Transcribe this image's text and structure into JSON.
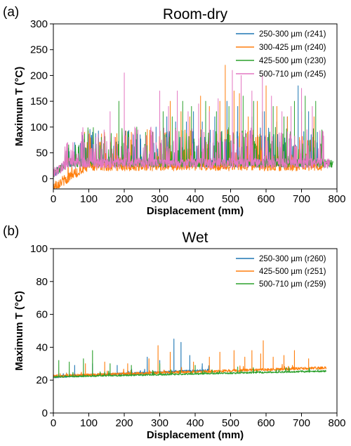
{
  "chart_data": [
    {
      "type": "line",
      "panel_label": "(a)",
      "title": "Room-dry",
      "xlabel": "Displacement (mm)",
      "ylabel": "Maximum T (°C)",
      "xlim": [
        0,
        800
      ],
      "ylim": [
        -20,
        300
      ],
      "xticks": [
        0,
        100,
        200,
        300,
        400,
        500,
        600,
        700,
        800
      ],
      "yticks": [
        0,
        50,
        100,
        150,
        200,
        250,
        300
      ],
      "grid": false,
      "legend_position": "top-right",
      "series": [
        {
          "name": "250-300 µm (r241)",
          "color": "#1f77b4",
          "x_range": [
            0,
            760
          ],
          "baseline": 30,
          "noise": 8,
          "spikes": [
            [
              60,
              70
            ],
            [
              85,
              60
            ],
            [
              110,
              90
            ],
            [
              150,
              70
            ],
            [
              205,
              80
            ],
            [
              245,
              85
            ],
            [
              290,
              100
            ],
            [
              320,
              120
            ],
            [
              345,
              110
            ],
            [
              375,
              110
            ],
            [
              395,
              130
            ],
            [
              420,
              110
            ],
            [
              455,
              120
            ],
            [
              490,
              150
            ],
            [
              520,
              140
            ],
            [
              560,
              120
            ],
            [
              595,
              130
            ],
            [
              630,
              110
            ],
            [
              660,
              120
            ],
            [
              690,
              180
            ],
            [
              720,
              130
            ],
            [
              745,
              90
            ]
          ]
        },
        {
          "name": "300-425 µm (r240)",
          "color": "#ff7f0e",
          "x_range": [
            0,
            760
          ],
          "baseline": 25,
          "noise": 10,
          "start_low": -15,
          "spikes": [
            [
              95,
              60
            ],
            [
              130,
              70
            ],
            [
              175,
              80
            ],
            [
              220,
              90
            ],
            [
              265,
              95
            ],
            [
              300,
              110
            ],
            [
              330,
              150
            ],
            [
              360,
              130
            ],
            [
              385,
              120
            ],
            [
              415,
              160
            ],
            [
              440,
              140
            ],
            [
              470,
              150
            ],
            [
              485,
              220
            ],
            [
              510,
              170
            ],
            [
              525,
              165
            ],
            [
              550,
              120
            ],
            [
              575,
              150
            ],
            [
              600,
              180
            ],
            [
              630,
              140
            ],
            [
              660,
              120
            ],
            [
              700,
              130
            ],
            [
              735,
              120
            ]
          ]
        },
        {
          "name": "425-500 µm (r230)",
          "color": "#2ca02c",
          "x_range": [
            0,
            790
          ],
          "baseline": 30,
          "noise": 8,
          "spikes": [
            [
              70,
              60
            ],
            [
              100,
              70
            ],
            [
              135,
              80
            ],
            [
              185,
              150
            ],
            [
              235,
              100
            ],
            [
              260,
              90
            ],
            [
              280,
              90
            ],
            [
              310,
              130
            ],
            [
              335,
              120
            ],
            [
              365,
              150
            ],
            [
              390,
              140
            ],
            [
              430,
              150
            ],
            [
              460,
              130
            ],
            [
              495,
              140
            ],
            [
              535,
              160
            ],
            [
              565,
              150
            ],
            [
              590,
              130
            ],
            [
              620,
              140
            ],
            [
              650,
              120
            ],
            [
              680,
              150
            ],
            [
              710,
              160
            ],
            [
              740,
              150
            ]
          ]
        },
        {
          "name": "500-710 µm (r245)",
          "color": "#e377c2",
          "x_range": [
            0,
            780
          ],
          "baseline": 30,
          "noise": 10,
          "spikes": [
            [
              40,
              70
            ],
            [
              80,
              90
            ],
            [
              120,
              80
            ],
            [
              160,
              130
            ],
            [
              200,
              205
            ],
            [
              230,
              100
            ],
            [
              275,
              100
            ],
            [
              300,
              170
            ],
            [
              325,
              140
            ],
            [
              350,
              170
            ],
            [
              380,
              130
            ],
            [
              410,
              145
            ],
            [
              440,
              130
            ],
            [
              465,
              155
            ],
            [
              505,
              210
            ],
            [
              530,
              200
            ],
            [
              560,
              170
            ],
            [
              590,
              200
            ],
            [
              615,
              160
            ],
            [
              645,
              130
            ],
            [
              670,
              140
            ],
            [
              700,
              175
            ],
            [
              730,
              140
            ]
          ]
        }
      ]
    },
    {
      "type": "line",
      "panel_label": "(b)",
      "title": "Wet",
      "xlabel": "Displacement (mm)",
      "ylabel": "Maximum T (°C)",
      "xlim": [
        0,
        800
      ],
      "ylim": [
        0,
        100
      ],
      "xticks": [
        0,
        100,
        200,
        300,
        400,
        500,
        600,
        700,
        800
      ],
      "yticks": [
        0,
        20,
        40,
        60,
        80,
        100
      ],
      "grid": false,
      "legend_position": "top-right",
      "series": [
        {
          "name": "250-300 µm (r260)",
          "color": "#1f77b4",
          "x_range": [
            0,
            440
          ],
          "baseline_start": 22,
          "baseline_end": 26,
          "noise": 0.7,
          "spikes": [
            [
              60,
              29
            ],
            [
              110,
              30
            ],
            [
              180,
              29
            ],
            [
              265,
              34
            ],
            [
              300,
              32
            ],
            [
              340,
              45
            ],
            [
              360,
              43
            ],
            [
              385,
              35
            ],
            [
              420,
              30
            ]
          ]
        },
        {
          "name": "425-500 µm (r251)",
          "color": "#ff7f0e",
          "x_range": [
            0,
            770
          ],
          "baseline_start": 22.5,
          "baseline_end": 27.5,
          "noise": 0.8,
          "spikes": [
            [
              90,
              30
            ],
            [
              145,
              31
            ],
            [
              210,
              30
            ],
            [
              270,
              33
            ],
            [
              295,
              41
            ],
            [
              330,
              37
            ],
            [
              395,
              31
            ],
            [
              440,
              34
            ],
            [
              470,
              37
            ],
            [
              510,
              38
            ],
            [
              540,
              34
            ],
            [
              560,
              38
            ],
            [
              585,
              36
            ],
            [
              592,
              44
            ],
            [
              620,
              34
            ],
            [
              650,
              35
            ],
            [
              680,
              38
            ],
            [
              720,
              33
            ]
          ]
        },
        {
          "name": "500-710 µm (r259)",
          "color": "#2ca02c",
          "x_range": [
            0,
            770
          ],
          "baseline_start": 22,
          "baseline_end": 25.5,
          "noise": 0.5,
          "spikes": [
            [
              15,
              32
            ],
            [
              45,
              31
            ],
            [
              85,
              33
            ],
            [
              110,
              38
            ],
            [
              160,
              30
            ],
            [
              220,
              29
            ],
            [
              300,
              30
            ],
            [
              400,
              29
            ],
            [
              520,
              28
            ]
          ]
        }
      ]
    }
  ]
}
